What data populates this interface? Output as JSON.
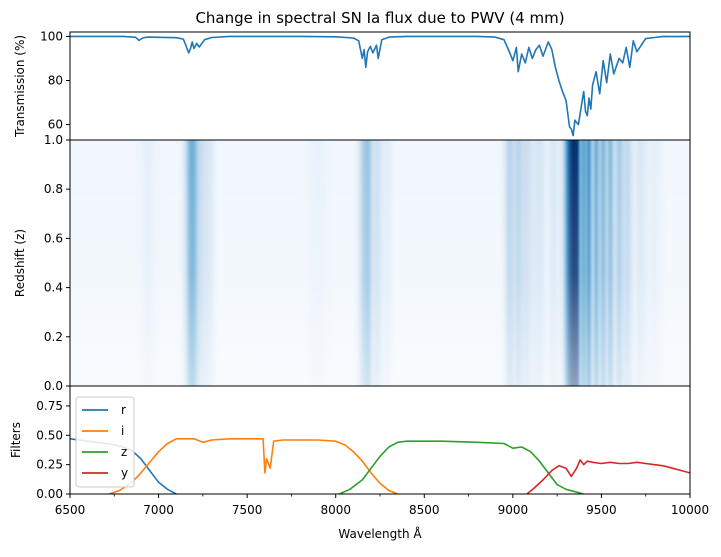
{
  "chart_data": [
    {
      "type": "line",
      "title": "Change in spectral SN Ia flux due to PWV (4 mm)",
      "xlabel": "",
      "ylabel": "Transmission (%)",
      "xlim": [
        6500,
        10000
      ],
      "ylim": [
        53,
        102
      ],
      "yticks": [
        60,
        80,
        100
      ],
      "series": [
        {
          "color": "#1f77b4",
          "x": [
            6500,
            6800,
            6870,
            6890,
            6910,
            6940,
            7000,
            7100,
            7140,
            7170,
            7180,
            7190,
            7200,
            7215,
            7230,
            7260,
            7300,
            7400,
            7600,
            7800,
            8000,
            8100,
            8130,
            8150,
            8160,
            8170,
            8180,
            8195,
            8210,
            8230,
            8240,
            8260,
            8300,
            8400,
            8600,
            8800,
            8900,
            8950,
            8980,
            9000,
            9020,
            9030,
            9050,
            9070,
            9090,
            9110,
            9130,
            9150,
            9170,
            9200,
            9220,
            9240,
            9260,
            9280,
            9300,
            9310,
            9320,
            9330,
            9340,
            9350,
            9370,
            9390,
            9400,
            9410,
            9420,
            9430,
            9440,
            9450,
            9470,
            9490,
            9510,
            9530,
            9550,
            9570,
            9600,
            9620,
            9640,
            9660,
            9680,
            9700,
            9750,
            9800,
            9850,
            9900,
            10000
          ],
          "values": [
            100,
            100,
            99.6,
            98.2,
            99.3,
            99.7,
            99.6,
            99.4,
            98.8,
            92.5,
            94.5,
            97.5,
            94.5,
            96.8,
            95.2,
            98.5,
            99.5,
            100,
            100,
            100,
            99.8,
            99.3,
            98,
            90,
            94,
            86,
            93,
            95.5,
            92.5,
            96,
            90,
            98.5,
            99.7,
            100,
            100,
            100,
            99.7,
            98.5,
            93,
            89,
            95,
            84,
            92,
            88,
            95,
            90,
            94,
            96,
            91,
            97.5,
            94,
            86,
            80,
            75,
            71,
            65,
            59,
            58,
            55,
            62,
            60,
            70,
            75,
            66,
            64,
            72,
            67,
            78,
            84,
            74,
            89,
            79,
            92,
            83,
            90,
            88,
            95,
            86,
            98,
            93,
            99,
            99.5,
            100,
            99.9,
            100
          ]
        }
      ]
    },
    {
      "type": "heatmap",
      "title": "",
      "xlabel": "",
      "ylabel": "Redshift (z)",
      "xlim": [
        6500,
        10000
      ],
      "ylim": [
        0.0,
        1.0
      ],
      "yticks": [
        0.0,
        0.2,
        0.4,
        0.6,
        0.8,
        1.0
      ],
      "colormap": "Blues",
      "bands": [
        {
          "center": 6940,
          "width": 30,
          "strength": 0.06
        },
        {
          "center": 7175,
          "width": 22,
          "strength": 0.32
        },
        {
          "center": 7200,
          "width": 18,
          "strength": 0.22
        },
        {
          "center": 7240,
          "width": 25,
          "strength": 0.18
        },
        {
          "center": 7290,
          "width": 20,
          "strength": 0.1
        },
        {
          "center": 7900,
          "width": 40,
          "strength": 0.04
        },
        {
          "center": 8160,
          "width": 22,
          "strength": 0.28
        },
        {
          "center": 8190,
          "width": 15,
          "strength": 0.2
        },
        {
          "center": 8235,
          "width": 18,
          "strength": 0.18
        },
        {
          "center": 8290,
          "width": 20,
          "strength": 0.08
        },
        {
          "center": 8980,
          "width": 20,
          "strength": 0.25
        },
        {
          "center": 9030,
          "width": 20,
          "strength": 0.22
        },
        {
          "center": 9080,
          "width": 25,
          "strength": 0.18
        },
        {
          "center": 9150,
          "width": 25,
          "strength": 0.14
        },
        {
          "center": 9230,
          "width": 20,
          "strength": 0.12
        },
        {
          "center": 9330,
          "width": 28,
          "strength": 0.85
        },
        {
          "center": 9360,
          "width": 14,
          "strength": 0.55
        },
        {
          "center": 9400,
          "width": 12,
          "strength": 0.45
        },
        {
          "center": 9430,
          "width": 12,
          "strength": 0.55
        },
        {
          "center": 9470,
          "width": 14,
          "strength": 0.45
        },
        {
          "center": 9510,
          "width": 14,
          "strength": 0.4
        },
        {
          "center": 9550,
          "width": 14,
          "strength": 0.38
        },
        {
          "center": 9600,
          "width": 20,
          "strength": 0.3
        },
        {
          "center": 9650,
          "width": 18,
          "strength": 0.22
        },
        {
          "center": 9720,
          "width": 25,
          "strength": 0.12
        },
        {
          "center": 9800,
          "width": 30,
          "strength": 0.06
        }
      ]
    },
    {
      "type": "line",
      "title": "",
      "xlabel": "Wavelength Å",
      "ylabel": "Filters",
      "xlim": [
        6500,
        10000
      ],
      "ylim": [
        0.0,
        0.92
      ],
      "yticks": [
        0.0,
        0.25,
        0.5,
        0.75
      ],
      "xticks": [
        6500,
        7000,
        7500,
        8000,
        8500,
        9000,
        9500,
        10000
      ],
      "legend": "top-left",
      "series": [
        {
          "name": "r",
          "color": "#1f77b4",
          "x": [
            6500,
            6550,
            6600,
            6650,
            6700,
            6750,
            6800,
            6850,
            6900,
            6950,
            7000,
            7050,
            7100
          ],
          "values": [
            0.47,
            0.46,
            0.45,
            0.44,
            0.43,
            0.42,
            0.4,
            0.37,
            0.3,
            0.2,
            0.1,
            0.04,
            0.0
          ]
        },
        {
          "name": "i",
          "color": "#ff7f0e",
          "x": [
            6720,
            6780,
            6850,
            6900,
            6950,
            7000,
            7050,
            7100,
            7200,
            7250,
            7300,
            7400,
            7500,
            7590,
            7600,
            7610,
            7630,
            7650,
            7700,
            7900,
            8000,
            8050,
            8100,
            8150,
            8200,
            8250,
            8300,
            8350
          ],
          "values": [
            0.0,
            0.03,
            0.1,
            0.18,
            0.27,
            0.36,
            0.43,
            0.47,
            0.47,
            0.44,
            0.46,
            0.47,
            0.47,
            0.47,
            0.18,
            0.3,
            0.22,
            0.45,
            0.46,
            0.46,
            0.45,
            0.42,
            0.36,
            0.28,
            0.18,
            0.09,
            0.03,
            0.0
          ]
        },
        {
          "name": "z",
          "color": "#2ca02c",
          "x": [
            8020,
            8080,
            8150,
            8200,
            8250,
            8300,
            8350,
            8400,
            8450,
            8600,
            8800,
            8950,
            9000,
            9050,
            9100,
            9150,
            9200,
            9250,
            9300,
            9350,
            9400
          ],
          "values": [
            0.0,
            0.04,
            0.12,
            0.22,
            0.32,
            0.4,
            0.44,
            0.45,
            0.45,
            0.45,
            0.44,
            0.43,
            0.39,
            0.4,
            0.36,
            0.28,
            0.18,
            0.08,
            0.04,
            0.02,
            0.0
          ]
        },
        {
          "name": "y",
          "color": "#d62728",
          "x": [
            9080,
            9120,
            9170,
            9220,
            9260,
            9300,
            9330,
            9360,
            9380,
            9400,
            9420,
            9450,
            9500,
            9550,
            9600,
            9650,
            9700,
            9750,
            9800,
            9850,
            9900,
            9950,
            10000
          ],
          "values": [
            0.0,
            0.05,
            0.12,
            0.2,
            0.24,
            0.22,
            0.15,
            0.22,
            0.29,
            0.25,
            0.28,
            0.27,
            0.26,
            0.27,
            0.26,
            0.26,
            0.27,
            0.26,
            0.25,
            0.24,
            0.22,
            0.2,
            0.18
          ]
        }
      ]
    }
  ]
}
